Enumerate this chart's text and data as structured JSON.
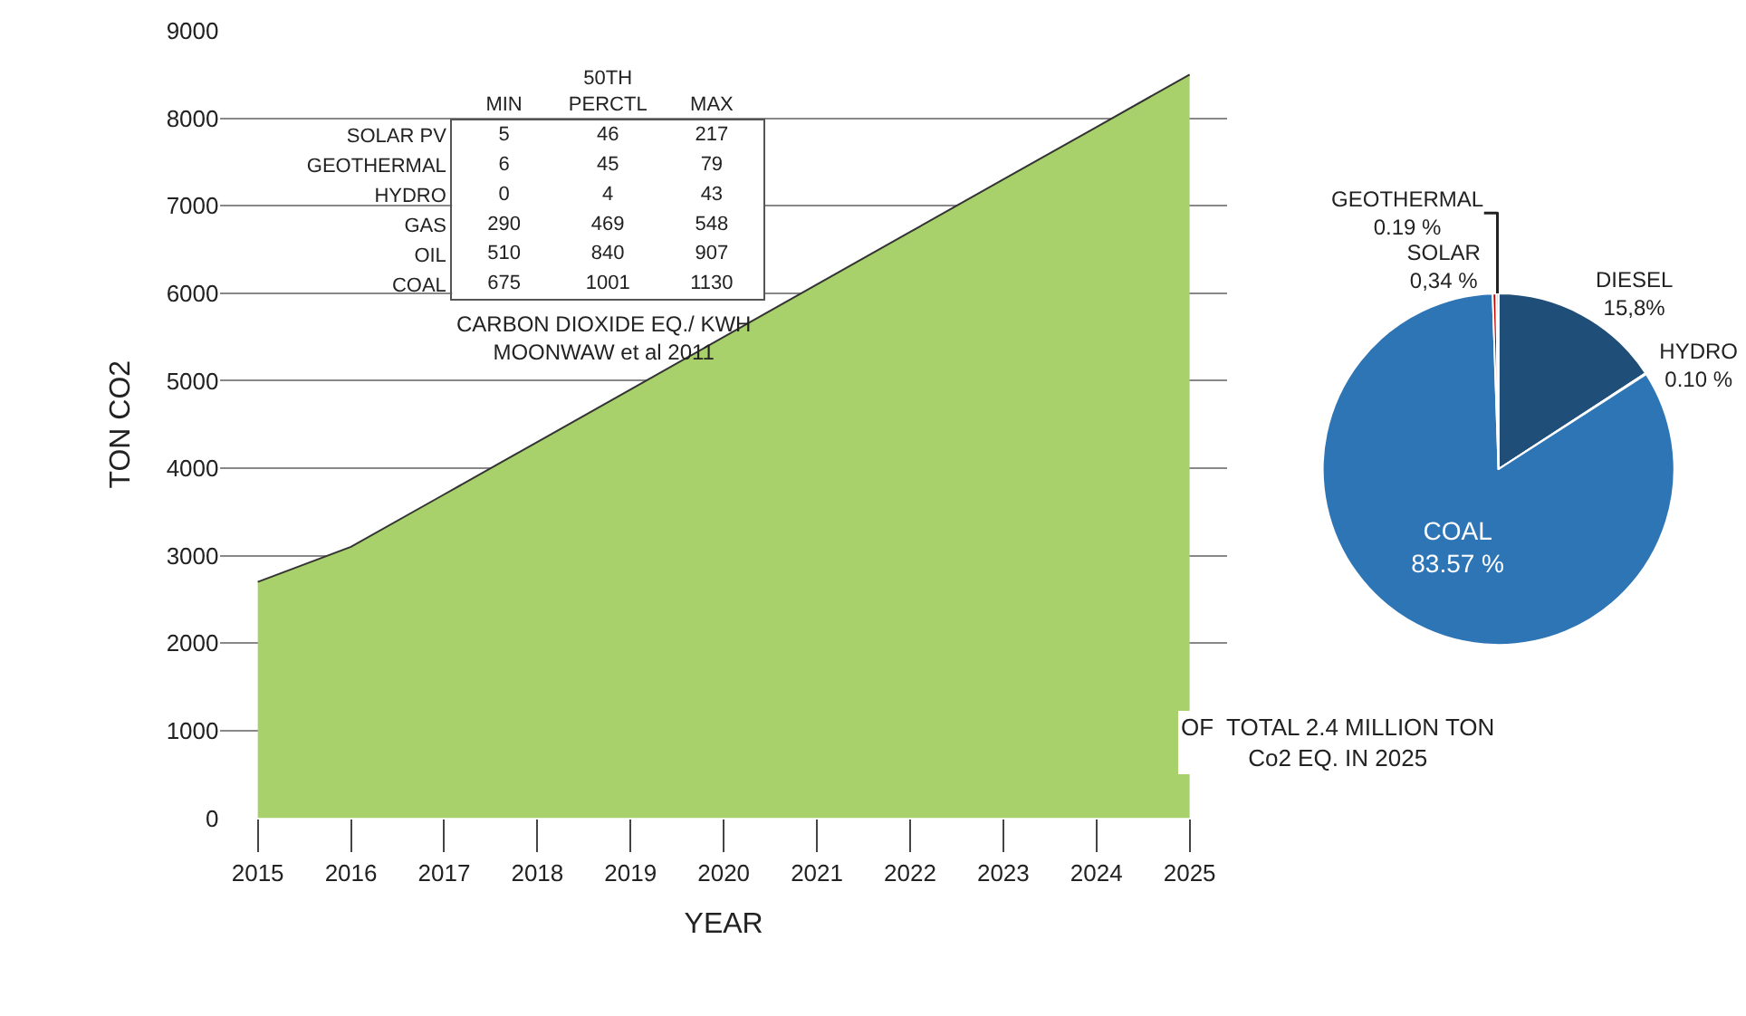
{
  "chart_data": [
    {
      "type": "area",
      "xlabel": "YEAR",
      "ylabel": "TON CO2",
      "categories": [
        "2015",
        "2016",
        "2017",
        "2018",
        "2019",
        "2020",
        "2021",
        "2022",
        "2023",
        "2024",
        "2025"
      ],
      "values": [
        2700,
        3100,
        3700,
        4300,
        4900,
        5500,
        6100,
        6700,
        7300,
        7900,
        8500
      ],
      "color": "#a9d16b",
      "ylim": [
        0,
        9000
      ],
      "yticks": [
        0,
        1000,
        2000,
        3000,
        4000,
        5000,
        6000,
        7000,
        8000,
        9000
      ],
      "grid": "y"
    },
    {
      "type": "pie",
      "categories": [
        "DIESEL",
        "HYDRO",
        "COAL",
        "SOLAR",
        "GEOTHERMAL"
      ],
      "values": [
        15.8,
        0.1,
        83.57,
        0.34,
        0.19
      ],
      "colors": [
        "#1f4e79",
        "#9dc3e6",
        "#2e75b6",
        "#c00000",
        "#7f7f7f"
      ],
      "value_labels": [
        "15,8%",
        "0.10 %",
        "83.57 %",
        "0,34 %",
        "0.19 %"
      ],
      "annotations": [
        "OF  TOTAL 2.4 MILLION TON\nCo2 EQ. IN 2025"
      ]
    },
    {
      "type": "heatmap",
      "categories": [
        "MIN",
        "50TH PERCTL",
        "MAX"
      ],
      "y_categories": [
        "SOLAR PV",
        "GEOTHERMAL",
        "HYDRO",
        "GAS",
        "OIL",
        "COAL"
      ],
      "cells": [
        [
          5,
          46,
          217
        ],
        [
          6,
          45,
          79
        ],
        [
          0,
          4,
          43
        ],
        [
          290,
          469,
          548
        ],
        [
          510,
          840,
          907
        ],
        [
          675,
          1001,
          1130
        ]
      ],
      "data_labels": true,
      "annotations": [
        "CARBON DIOXIDE EQ./ KWH\nMOONWAW et al 2011"
      ]
    }
  ]
}
